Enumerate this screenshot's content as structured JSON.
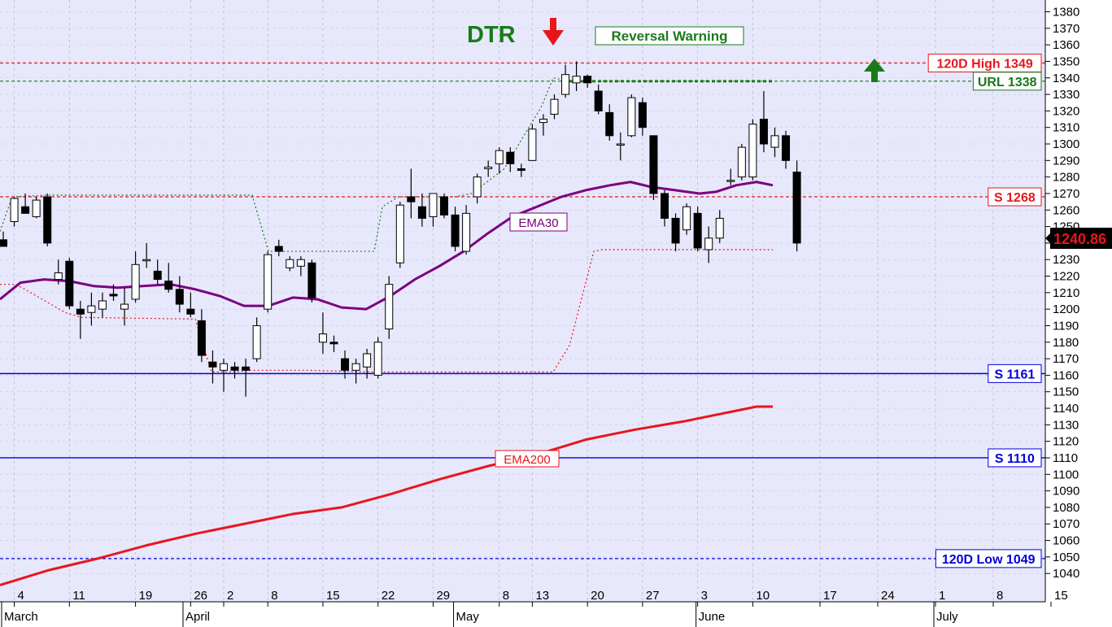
{
  "chart_data": {
    "type": "candlestick",
    "y_axis": {
      "min": 1030,
      "max": 1385,
      "ticks": [
        1040,
        1050,
        1060,
        1070,
        1080,
        1090,
        1100,
        1110,
        1120,
        1130,
        1140,
        1150,
        1160,
        1170,
        1180,
        1190,
        1200,
        1210,
        1220,
        1230,
        1240,
        1250,
        1260,
        1270,
        1280,
        1290,
        1300,
        1310,
        1320,
        1330,
        1340,
        1350,
        1360,
        1370,
        1380
      ],
      "position": "right"
    },
    "grid": true,
    "x_axis": {
      "day_labels": [
        {
          "label": "4",
          "date": "2013-03-04"
        },
        {
          "label": "11",
          "date": "2013-03-11"
        },
        {
          "label": "19",
          "date": "2013-03-19"
        },
        {
          "label": "26",
          "date": "2013-03-26"
        },
        {
          "label": "2",
          "date": "2013-04-02"
        },
        {
          "label": "8",
          "date": "2013-04-08"
        },
        {
          "label": "15",
          "date": "2013-04-15"
        },
        {
          "label": "22",
          "date": "2013-04-22"
        },
        {
          "label": "29",
          "date": "2013-04-29"
        },
        {
          "label": "8",
          "date": "2013-05-08"
        },
        {
          "label": "13",
          "date": "2013-05-13"
        },
        {
          "label": "20",
          "date": "2013-05-20"
        },
        {
          "label": "27",
          "date": "2013-05-27"
        },
        {
          "label": "3",
          "date": "2013-06-03"
        },
        {
          "label": "10",
          "date": "2013-06-10"
        },
        {
          "label": "17",
          "date": "2013-06-17"
        },
        {
          "label": "24",
          "date": "2013-06-24"
        },
        {
          "label": "1",
          "date": "2013-07-01"
        },
        {
          "label": "8",
          "date": "2013-07-08"
        },
        {
          "label": "15",
          "date": "2013-07-15"
        }
      ],
      "month_labels": [
        {
          "label": "March",
          "date": "2013-03-01"
        },
        {
          "label": "April",
          "date": "2013-04-01"
        },
        {
          "label": "May",
          "date": "2013-05-01"
        },
        {
          "label": "June",
          "date": "2013-06-03"
        },
        {
          "label": "July",
          "date": "2013-07-01"
        }
      ]
    },
    "candles": [
      {
        "date": "2013-03-01",
        "o": 1242,
        "h": 1247,
        "l": 1238,
        "c": 1238
      },
      {
        "date": "2013-03-04",
        "o": 1253,
        "h": 1268,
        "l": 1250,
        "c": 1267
      },
      {
        "date": "2013-03-05",
        "o": 1262,
        "h": 1270,
        "l": 1258,
        "c": 1258
      },
      {
        "date": "2013-03-06",
        "o": 1256,
        "h": 1268,
        "l": 1255,
        "c": 1266
      },
      {
        "date": "2013-03-07",
        "o": 1268,
        "h": 1270,
        "l": 1238,
        "c": 1240
      },
      {
        "date": "2013-03-08",
        "o": 1218,
        "h": 1230,
        "l": 1215,
        "c": 1222
      },
      {
        "date": "2013-03-11",
        "o": 1229,
        "h": 1231,
        "l": 1200,
        "c": 1202
      },
      {
        "date": "2013-03-12",
        "o": 1200,
        "h": 1205,
        "l": 1182,
        "c": 1197
      },
      {
        "date": "2013-03-13",
        "o": 1198,
        "h": 1210,
        "l": 1190,
        "c": 1202
      },
      {
        "date": "2013-03-14",
        "o": 1200,
        "h": 1210,
        "l": 1195,
        "c": 1205
      },
      {
        "date": "2013-03-15",
        "o": 1209,
        "h": 1215,
        "l": 1205,
        "c": 1208
      },
      {
        "date": "2013-03-18",
        "o": 1200,
        "h": 1213,
        "l": 1190,
        "c": 1203
      },
      {
        "date": "2013-03-19",
        "o": 1206,
        "h": 1235,
        "l": 1204,
        "c": 1227
      },
      {
        "date": "2013-03-20",
        "o": 1230,
        "h": 1240,
        "l": 1225,
        "c": 1230
      },
      {
        "date": "2013-03-21",
        "o": 1223,
        "h": 1230,
        "l": 1215,
        "c": 1218
      },
      {
        "date": "2013-03-22",
        "o": 1217,
        "h": 1228,
        "l": 1210,
        "c": 1212
      },
      {
        "date": "2013-03-25",
        "o": 1212,
        "h": 1220,
        "l": 1198,
        "c": 1203
      },
      {
        "date": "2013-03-26",
        "o": 1200,
        "h": 1210,
        "l": 1195,
        "c": 1197
      },
      {
        "date": "2013-03-27",
        "o": 1193,
        "h": 1200,
        "l": 1168,
        "c": 1172
      },
      {
        "date": "2013-03-28",
        "o": 1168,
        "h": 1175,
        "l": 1155,
        "c": 1165
      },
      {
        "date": "2013-04-02",
        "o": 1163,
        "h": 1170,
        "l": 1150,
        "c": 1167
      },
      {
        "date": "2013-04-03",
        "o": 1165,
        "h": 1168,
        "l": 1158,
        "c": 1163
      },
      {
        "date": "2013-04-04",
        "o": 1165,
        "h": 1170,
        "l": 1147,
        "c": 1163
      },
      {
        "date": "2013-04-05",
        "o": 1170,
        "h": 1195,
        "l": 1168,
        "c": 1190
      },
      {
        "date": "2013-04-08",
        "o": 1200,
        "h": 1235,
        "l": 1198,
        "c": 1233
      },
      {
        "date": "2013-04-09",
        "o": 1238,
        "h": 1242,
        "l": 1232,
        "c": 1235
      },
      {
        "date": "2013-04-10",
        "o": 1225,
        "h": 1232,
        "l": 1223,
        "c": 1230
      },
      {
        "date": "2013-04-11",
        "o": 1226,
        "h": 1232,
        "l": 1220,
        "c": 1230
      },
      {
        "date": "2013-04-12",
        "o": 1228,
        "h": 1230,
        "l": 1204,
        "c": 1207
      },
      {
        "date": "2013-04-15",
        "o": 1180,
        "h": 1198,
        "l": 1173,
        "c": 1185
      },
      {
        "date": "2013-04-16",
        "o": 1180,
        "h": 1184,
        "l": 1174,
        "c": 1179
      },
      {
        "date": "2013-04-17",
        "o": 1170,
        "h": 1175,
        "l": 1158,
        "c": 1163
      },
      {
        "date": "2013-04-18",
        "o": 1163,
        "h": 1170,
        "l": 1155,
        "c": 1167
      },
      {
        "date": "2013-04-19",
        "o": 1165,
        "h": 1176,
        "l": 1158,
        "c": 1173
      },
      {
        "date": "2013-04-22",
        "o": 1160,
        "h": 1183,
        "l": 1158,
        "c": 1180
      },
      {
        "date": "2013-04-23",
        "o": 1188,
        "h": 1220,
        "l": 1182,
        "c": 1215
      },
      {
        "date": "2013-04-24",
        "o": 1228,
        "h": 1265,
        "l": 1225,
        "c": 1263
      },
      {
        "date": "2013-04-25",
        "o": 1268,
        "h": 1285,
        "l": 1255,
        "c": 1265
      },
      {
        "date": "2013-04-26",
        "o": 1262,
        "h": 1270,
        "l": 1250,
        "c": 1255
      },
      {
        "date": "2013-04-29",
        "o": 1256,
        "h": 1270,
        "l": 1250,
        "c": 1270
      },
      {
        "date": "2013-04-30",
        "o": 1268,
        "h": 1270,
        "l": 1255,
        "c": 1257
      },
      {
        "date": "2013-05-01",
        "o": 1257,
        "h": 1262,
        "l": 1235,
        "c": 1238
      },
      {
        "date": "2013-05-02",
        "o": 1235,
        "h": 1263,
        "l": 1233,
        "c": 1258
      },
      {
        "date": "2013-05-06",
        "o": 1268,
        "h": 1282,
        "l": 1264,
        "c": 1280
      },
      {
        "date": "2013-05-07",
        "o": 1285,
        "h": 1290,
        "l": 1280,
        "c": 1286
      },
      {
        "date": "2013-05-08",
        "o": 1288,
        "h": 1298,
        "l": 1282,
        "c": 1296
      },
      {
        "date": "2013-05-09",
        "o": 1295,
        "h": 1298,
        "l": 1283,
        "c": 1288
      },
      {
        "date": "2013-05-10",
        "o": 1285,
        "h": 1288,
        "l": 1280,
        "c": 1284
      },
      {
        "date": "2013-05-13",
        "o": 1290,
        "h": 1312,
        "l": 1290,
        "c": 1309
      },
      {
        "date": "2013-05-14",
        "o": 1313,
        "h": 1318,
        "l": 1305,
        "c": 1315
      },
      {
        "date": "2013-05-15",
        "o": 1318,
        "h": 1330,
        "l": 1315,
        "c": 1327
      },
      {
        "date": "2013-05-16",
        "o": 1330,
        "h": 1348,
        "l": 1328,
        "c": 1342
      },
      {
        "date": "2013-05-17",
        "o": 1337,
        "h": 1350,
        "l": 1332,
        "c": 1341
      },
      {
        "date": "2013-05-20",
        "o": 1341,
        "h": 1342,
        "l": 1334,
        "c": 1337
      },
      {
        "date": "2013-05-21",
        "o": 1332,
        "h": 1336,
        "l": 1318,
        "c": 1320
      },
      {
        "date": "2013-05-22",
        "o": 1319,
        "h": 1324,
        "l": 1302,
        "c": 1305
      },
      {
        "date": "2013-05-23",
        "o": 1300,
        "h": 1307,
        "l": 1290,
        "c": 1300
      },
      {
        "date": "2013-05-24",
        "o": 1305,
        "h": 1330,
        "l": 1304,
        "c": 1328
      },
      {
        "date": "2013-05-27",
        "o": 1325,
        "h": 1328,
        "l": 1305,
        "c": 1310
      },
      {
        "date": "2013-05-28",
        "o": 1305,
        "h": 1305,
        "l": 1266,
        "c": 1270
      },
      {
        "date": "2013-05-29",
        "o": 1270,
        "h": 1272,
        "l": 1250,
        "c": 1255
      },
      {
        "date": "2013-05-30",
        "o": 1255,
        "h": 1258,
        "l": 1235,
        "c": 1240
      },
      {
        "date": "2013-05-31",
        "o": 1248,
        "h": 1264,
        "l": 1245,
        "c": 1262
      },
      {
        "date": "2013-06-03",
        "o": 1258,
        "h": 1262,
        "l": 1235,
        "c": 1237
      },
      {
        "date": "2013-06-04",
        "o": 1236,
        "h": 1250,
        "l": 1228,
        "c": 1243
      },
      {
        "date": "2013-06-05",
        "o": 1243,
        "h": 1260,
        "l": 1240,
        "c": 1255
      },
      {
        "date": "2013-06-06",
        "o": 1278,
        "h": 1285,
        "l": 1275,
        "c": 1278
      },
      {
        "date": "2013-06-07",
        "o": 1280,
        "h": 1300,
        "l": 1278,
        "c": 1298
      },
      {
        "date": "2013-06-10",
        "o": 1280,
        "h": 1315,
        "l": 1278,
        "c": 1312
      },
      {
        "date": "2013-06-11",
        "o": 1315,
        "h": 1332,
        "l": 1295,
        "c": 1300
      },
      {
        "date": "2013-06-12",
        "o": 1298,
        "h": 1310,
        "l": 1292,
        "c": 1305
      },
      {
        "date": "2013-06-13",
        "o": 1305,
        "h": 1308,
        "l": 1285,
        "c": 1290
      },
      {
        "date": "2013-06-14",
        "o": 1283,
        "h": 1290,
        "l": 1235,
        "c": 1240
      }
    ],
    "series": [
      {
        "name": "EMA30",
        "color": "#7b0080",
        "points": [
          [
            0,
            1206
          ],
          [
            25,
            1216
          ],
          [
            54,
            1218
          ],
          [
            85,
            1217
          ],
          [
            115,
            1214
          ],
          [
            145,
            1213
          ],
          [
            175,
            1214
          ],
          [
            210,
            1215
          ],
          [
            240,
            1212
          ],
          [
            270,
            1208
          ],
          [
            300,
            1202
          ],
          [
            330,
            1202
          ],
          [
            360,
            1207
          ],
          [
            390,
            1206
          ],
          [
            420,
            1201
          ],
          [
            450,
            1200
          ],
          [
            480,
            1208
          ],
          [
            510,
            1218
          ],
          [
            540,
            1226
          ],
          [
            570,
            1235
          ],
          [
            600,
            1246
          ],
          [
            630,
            1256
          ],
          [
            660,
            1262
          ],
          [
            690,
            1268
          ],
          [
            720,
            1272
          ],
          [
            750,
            1275
          ],
          [
            775,
            1277
          ],
          [
            800,
            1274
          ],
          [
            830,
            1272
          ],
          [
            860,
            1270
          ],
          [
            880,
            1271
          ],
          [
            905,
            1275
          ],
          [
            930,
            1277
          ],
          [
            950,
            1275
          ]
        ]
      },
      {
        "name": "EMA200",
        "color": "#e8161c",
        "points": [
          [
            0,
            1033
          ],
          [
            60,
            1042
          ],
          [
            120,
            1049
          ],
          [
            180,
            1057
          ],
          [
            240,
            1064
          ],
          [
            300,
            1070
          ],
          [
            360,
            1076
          ],
          [
            420,
            1080
          ],
          [
            480,
            1088
          ],
          [
            540,
            1097
          ],
          [
            600,
            1105
          ],
          [
            660,
            1112
          ],
          [
            720,
            1121
          ],
          [
            780,
            1127
          ],
          [
            840,
            1132
          ],
          [
            900,
            1138
          ],
          [
            930,
            1141
          ],
          [
            950,
            1141
          ]
        ]
      }
    ],
    "stops": [
      {
        "color": "#e8161c",
        "points": [
          [
            0,
            1215
          ],
          [
            20,
            1215
          ],
          [
            80,
            1198
          ],
          [
            100,
            1195
          ],
          [
            240,
            1194
          ],
          [
            260,
            1162
          ],
          [
            290,
            1162
          ],
          [
            305,
            1163
          ],
          [
            380,
            1163
          ],
          [
            450,
            1162
          ],
          [
            550,
            1162
          ],
          [
            670,
            1162
          ],
          [
            680,
            1162
          ],
          [
            700,
            1178
          ],
          [
            730,
            1235
          ],
          [
            740,
            1236
          ],
          [
            800,
            1236
          ],
          [
            840,
            1236
          ],
          [
            870,
            1236
          ],
          [
            950,
            1236
          ]
        ]
      },
      {
        "color": "#1a7a1a",
        "points": [
          [
            0,
            1247
          ],
          [
            15,
            1268
          ],
          [
            60,
            1269
          ],
          [
            310,
            1269
          ],
          [
            330,
            1235
          ],
          [
            460,
            1235
          ],
          [
            470,
            1262
          ],
          [
            490,
            1268
          ],
          [
            560,
            1268
          ],
          [
            580,
            1270
          ],
          [
            620,
            1285
          ],
          [
            650,
            1310
          ],
          [
            665,
            1322
          ],
          [
            680,
            1340
          ],
          [
            700,
            1338
          ],
          [
            950,
            1338
          ]
        ]
      }
    ],
    "hlines": [
      {
        "value": 1349,
        "color": "#e8161c",
        "style": "dashed",
        "label": "120D High 1349"
      },
      {
        "value": 1338,
        "color": "#1a7a1a",
        "style": "dashed",
        "label": "URL 1338"
      },
      {
        "value": 1268,
        "color": "#e8161c",
        "style": "dashed",
        "label": "S 1268"
      },
      {
        "value": 1161,
        "color": "#0000dd",
        "style": "solid",
        "label": "S 1161"
      },
      {
        "value": 1110,
        "color": "#0000dd",
        "style": "solid",
        "label": "S 1110"
      },
      {
        "value": 1049,
        "color": "#0000dd",
        "style": "dashed",
        "label": "120D Low 1049"
      }
    ],
    "current_price": {
      "value": 1240.86,
      "label": "1240.86"
    },
    "annotations": {
      "signal": "DTR",
      "warning": "Reversal Warning",
      "ema30_label": "EMA30",
      "ema200_label": "EMA200"
    }
  },
  "colors": {
    "plot_bg": "#e7e8fb",
    "axis_bg": "#ffffff",
    "grid": "#a0a0a0",
    "up": "#ffffff",
    "down": "#000000",
    "accent_red": "#e8161c",
    "accent_green": "#1a7a1a",
    "accent_blue": "#0000dd"
  }
}
